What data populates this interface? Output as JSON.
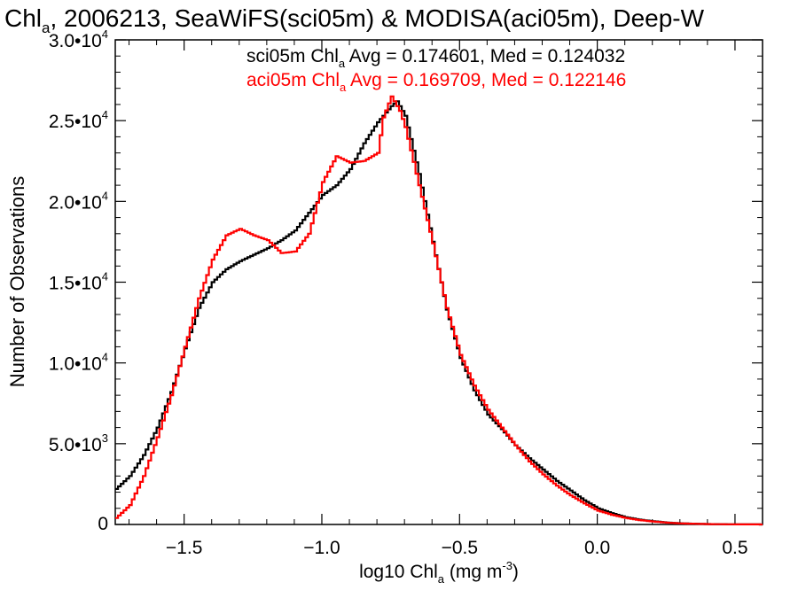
{
  "chart_data": {
    "type": "line",
    "title": {
      "base": "Chl",
      "sub": "a",
      "rest": ", 2006213, SeaWiFS(sci05m) & MODISA(aci05m), Deep-W"
    },
    "xlabel": {
      "base": "log10 Chl",
      "sub": "a",
      "rest": " (mg m",
      "sup": "-3",
      "end": ")"
    },
    "ylabel": "Number of Observations",
    "xlim": [
      -1.75,
      0.6
    ],
    "ylim": [
      0,
      30000
    ],
    "x_ticks": [
      {
        "value": -1.5,
        "label": "−1.5"
      },
      {
        "value": -1.0,
        "label": "−1.0"
      },
      {
        "value": -0.5,
        "label": "−0.5"
      },
      {
        "value": 0.0,
        "label": "0.0"
      },
      {
        "value": 0.5,
        "label": "0.5"
      }
    ],
    "y_ticks": [
      {
        "value": 0,
        "mant": "0",
        "exp": ""
      },
      {
        "value": 5000,
        "mant": "5.0•10",
        "exp": "3"
      },
      {
        "value": 10000,
        "mant": "1.0•10",
        "exp": "4"
      },
      {
        "value": 15000,
        "mant": "1.5•10",
        "exp": "4"
      },
      {
        "value": 20000,
        "mant": "2.0•10",
        "exp": "4"
      },
      {
        "value": 25000,
        "mant": "2.5•10",
        "exp": "4"
      },
      {
        "value": 30000,
        "mant": "3.0•10",
        "exp": "4"
      }
    ],
    "annotations": [
      {
        "color": "#000000",
        "pre": "sci05m Chl",
        "sub": "a",
        "post": " Avg = 0.174601, Med = 0.124032"
      },
      {
        "color": "#ff0000",
        "pre": "aci05m Chl",
        "sub": "a",
        "post": " Avg = 0.169709, Med = 0.122146"
      }
    ],
    "series": [
      {
        "color": "#000000",
        "points": [
          [
            -1.75,
            2200
          ],
          [
            -1.7,
            3000
          ],
          [
            -1.65,
            4300
          ],
          [
            -1.6,
            6000
          ],
          [
            -1.55,
            8200
          ],
          [
            -1.5,
            10900
          ],
          [
            -1.45,
            13400
          ],
          [
            -1.4,
            15000
          ],
          [
            -1.35,
            15800
          ],
          [
            -1.3,
            16300
          ],
          [
            -1.25,
            16700
          ],
          [
            -1.2,
            17100
          ],
          [
            -1.15,
            17600
          ],
          [
            -1.1,
            18200
          ],
          [
            -1.05,
            19300
          ],
          [
            -1.0,
            20400
          ],
          [
            -0.95,
            21000
          ],
          [
            -0.9,
            22000
          ],
          [
            -0.85,
            23600
          ],
          [
            -0.8,
            24900
          ],
          [
            -0.75,
            25900
          ],
          [
            -0.73,
            26200
          ],
          [
            -0.7,
            25300
          ],
          [
            -0.65,
            21700
          ],
          [
            -0.6,
            17500
          ],
          [
            -0.55,
            13300
          ],
          [
            -0.5,
            10300
          ],
          [
            -0.45,
            8300
          ],
          [
            -0.4,
            6800
          ],
          [
            -0.35,
            5900
          ],
          [
            -0.3,
            4900
          ],
          [
            -0.25,
            4100
          ],
          [
            -0.2,
            3400
          ],
          [
            -0.15,
            2700
          ],
          [
            -0.1,
            2100
          ],
          [
            -0.05,
            1500
          ],
          [
            0.0,
            1000
          ],
          [
            0.05,
            700
          ],
          [
            0.1,
            450
          ],
          [
            0.15,
            300
          ],
          [
            0.2,
            200
          ],
          [
            0.25,
            120
          ],
          [
            0.3,
            70
          ],
          [
            0.4,
            25
          ],
          [
            0.5,
            8
          ],
          [
            0.6,
            2
          ]
        ]
      },
      {
        "color": "#ff0000",
        "points": [
          [
            -1.75,
            400
          ],
          [
            -1.7,
            1200
          ],
          [
            -1.65,
            3000
          ],
          [
            -1.6,
            5400
          ],
          [
            -1.55,
            8000
          ],
          [
            -1.5,
            11000
          ],
          [
            -1.45,
            14000
          ],
          [
            -1.4,
            16400
          ],
          [
            -1.35,
            17900
          ],
          [
            -1.3,
            18300
          ],
          [
            -1.25,
            17900
          ],
          [
            -1.2,
            17600
          ],
          [
            -1.15,
            16800
          ],
          [
            -1.1,
            16900
          ],
          [
            -1.05,
            18000
          ],
          [
            -1.0,
            21200
          ],
          [
            -0.95,
            22800
          ],
          [
            -0.9,
            22400
          ],
          [
            -0.85,
            22500
          ],
          [
            -0.8,
            23000
          ],
          [
            -0.78,
            25200
          ],
          [
            -0.75,
            26500
          ],
          [
            -0.72,
            25600
          ],
          [
            -0.7,
            24600
          ],
          [
            -0.65,
            21000
          ],
          [
            -0.6,
            17400
          ],
          [
            -0.55,
            13400
          ],
          [
            -0.5,
            10500
          ],
          [
            -0.45,
            8600
          ],
          [
            -0.4,
            7100
          ],
          [
            -0.35,
            6000
          ],
          [
            -0.3,
            4900
          ],
          [
            -0.25,
            3900
          ],
          [
            -0.2,
            3100
          ],
          [
            -0.15,
            2400
          ],
          [
            -0.1,
            1800
          ],
          [
            -0.05,
            1300
          ],
          [
            0.0,
            850
          ],
          [
            0.05,
            600
          ],
          [
            0.1,
            400
          ],
          [
            0.15,
            270
          ],
          [
            0.2,
            180
          ],
          [
            0.25,
            110
          ],
          [
            0.3,
            65
          ],
          [
            0.4,
            22
          ],
          [
            0.5,
            7
          ],
          [
            0.6,
            2
          ]
        ]
      }
    ],
    "grid": false
  }
}
